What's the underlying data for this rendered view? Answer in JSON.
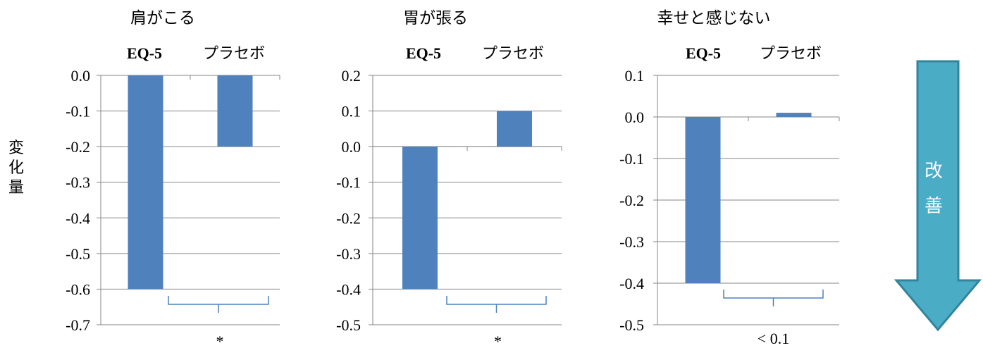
{
  "ylabel": "変化量",
  "improvement_label": "改善",
  "colors": {
    "bar": "#4f81bd",
    "axis": "#868686",
    "grid": "#868686",
    "bracket": "#4f81bd",
    "arrow_fill": "#4bacc6",
    "arrow_stroke": "#31859c"
  },
  "chart_data": [
    {
      "type": "bar",
      "title": "肩がこる",
      "categories": [
        "EQ-5",
        "プラセボ"
      ],
      "values": [
        -0.6,
        -0.2
      ],
      "ylim": [
        -0.7,
        0.0
      ],
      "yticks": [
        "0.0",
        "-0.1",
        "-0.2",
        "-0.3",
        "-0.4",
        "-0.5",
        "-0.6",
        "-0.7"
      ],
      "grid": true,
      "significance": "*"
    },
    {
      "type": "bar",
      "title": "胃が張る",
      "categories": [
        "EQ-5",
        "プラセボ"
      ],
      "values": [
        -0.4,
        0.1
      ],
      "ylim": [
        -0.5,
        0.2
      ],
      "yticks": [
        "0.2",
        "0.1",
        "0.0",
        "-0.1",
        "-0.2",
        "-0.3",
        "-0.4",
        "-0.5"
      ],
      "grid": true,
      "significance": "*"
    },
    {
      "type": "bar",
      "title": "幸せと感じない",
      "categories": [
        "EQ-5",
        "プラセボ"
      ],
      "values": [
        -0.4,
        0.01
      ],
      "ylim": [
        -0.5,
        0.1
      ],
      "yticks": [
        "0.1",
        "0.0",
        "-0.1",
        "-0.2",
        "-0.3",
        "-0.4",
        "-0.5"
      ],
      "grid": true,
      "significance": "< 0.1"
    }
  ]
}
